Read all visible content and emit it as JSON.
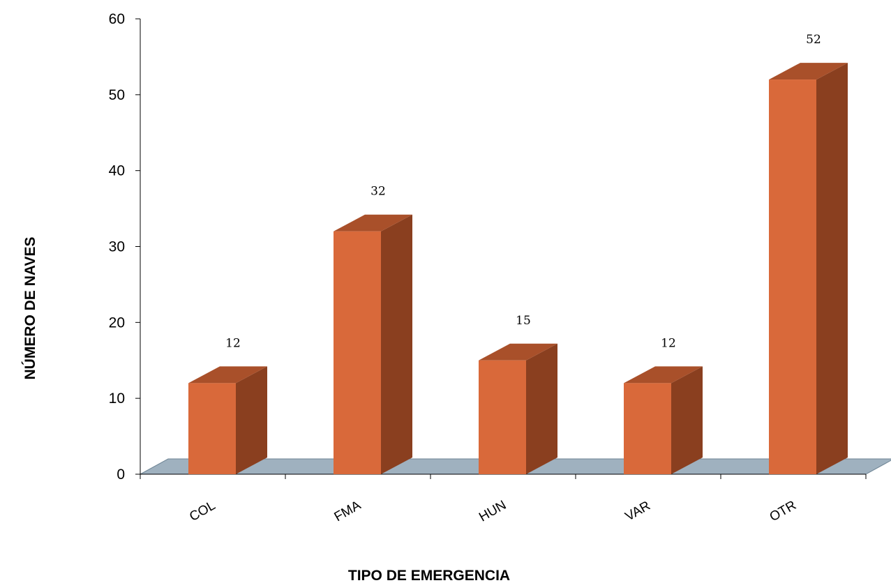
{
  "chart_data": {
    "type": "bar",
    "style": "3d-column",
    "categories": [
      "COL",
      "FMA",
      "HUN",
      "VAR",
      "OTR"
    ],
    "values": [
      12,
      32,
      15,
      12,
      52
    ],
    "data_labels": [
      "12",
      "32",
      "15",
      "12",
      "52"
    ],
    "xlabel": "TIPO DE EMERGENCIA",
    "ylabel": "NÚMERO DE NAVES",
    "ylim": [
      0,
      60
    ],
    "yticks": [
      "0",
      "10",
      "20",
      "30",
      "40",
      "50",
      "60"
    ],
    "grid": false,
    "legend": "none",
    "colors": {
      "bar_front": "#D9693A",
      "bar_side": "#8A3F1F",
      "bar_top": "#A9502A",
      "floor": "#9FB1BF"
    }
  }
}
